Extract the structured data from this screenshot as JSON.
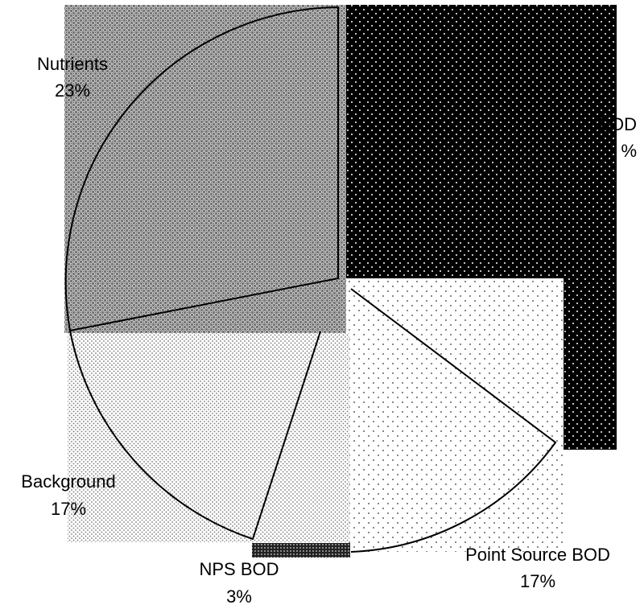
{
  "chart_data": {
    "type": "pie",
    "title": "",
    "slices": [
      {
        "label": "Nutrients",
        "percent_label": "23%",
        "value": 23
      },
      {
        "label": "Point Source BOD",
        "percent_label": "17%",
        "value": 17
      },
      {
        "label": "NPS BOD",
        "percent_label": "3%",
        "value": 3
      },
      {
        "label": "Background",
        "percent_label": "17%",
        "value": 17
      },
      {
        "label": "BOD",
        "percent_label": "%",
        "value": 40
      }
    ],
    "legend": "none",
    "fill_patterns": [
      "dense-crosshatch-gray",
      "sparse-dots-black",
      "dense-dots-black",
      "fine-dots-gray",
      "white-dots-on-black"
    ]
  }
}
